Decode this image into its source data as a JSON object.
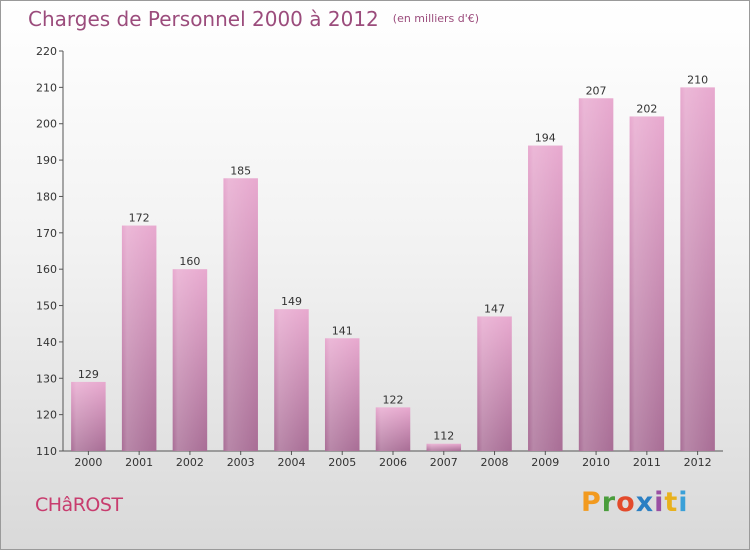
{
  "header": {
    "title": "Charges de Personnel 2000 à 2012",
    "subtitle": "(en milliers d'€)"
  },
  "footer": {
    "place": "CHâROST",
    "logo_text": "Proxiti"
  },
  "colors": {
    "bar_top": "#e8a9cf",
    "bar_bottom": "#a86d95",
    "title": "#9b4c7c",
    "place": "#c83c6e",
    "logo": [
      "#f29a1f",
      "#4a9d3c",
      "#e34a2b",
      "#2b7fc3",
      "#9a4fa3",
      "#e8b11d",
      "#3aa0d8"
    ]
  },
  "chart_data": {
    "type": "bar",
    "categories": [
      "2000",
      "2001",
      "2002",
      "2003",
      "2004",
      "2005",
      "2006",
      "2007",
      "2008",
      "2009",
      "2010",
      "2011",
      "2012"
    ],
    "values": [
      129,
      172,
      160,
      185,
      149,
      141,
      122,
      112,
      147,
      194,
      207,
      202,
      210
    ],
    "title": "Charges de Personnel 2000 à 2012",
    "xlabel": "",
    "ylabel": "",
    "ylim": [
      110,
      220
    ],
    "yticks": [
      110,
      120,
      130,
      140,
      150,
      160,
      170,
      180,
      190,
      200,
      210,
      220
    ],
    "grid": false,
    "legend": "none"
  }
}
